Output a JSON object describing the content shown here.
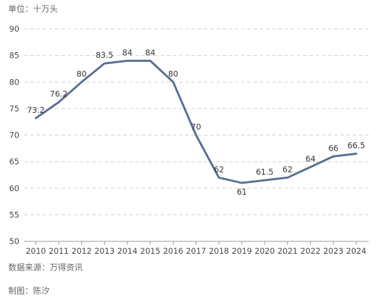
{
  "unit_text": "单位：十万头",
  "source_text": "数据来源：万得资讯",
  "credit_text": "制图：陈汐",
  "colors": {
    "line": "#596e91",
    "grid": "#d0d0d0",
    "axis": "#999999"
  },
  "chart_data": {
    "type": "line",
    "title": "",
    "xlabel": "",
    "ylabel": "",
    "categories": [
      "2010",
      "2011",
      "2012",
      "2013",
      "2014",
      "2015",
      "2016",
      "2017",
      "2018",
      "2019",
      "2020",
      "2021",
      "2022",
      "2023",
      "2024"
    ],
    "series": [
      {
        "values": [
          73.2,
          76.2,
          80,
          83.5,
          84,
          84,
          80,
          70,
          62,
          61,
          61.5,
          62,
          64,
          66,
          66.5
        ],
        "labels": [
          "73.2",
          "76.2",
          "80",
          "83.5",
          "84",
          "84",
          "80",
          "70",
          "62",
          "61",
          "61.5",
          "62",
          "64",
          "66",
          "66.5"
        ]
      }
    ],
    "ylim": [
      50,
      90
    ],
    "yticks": [
      50,
      55,
      60,
      65,
      70,
      75,
      80,
      85,
      90
    ],
    "grid": true,
    "legend": "none"
  }
}
